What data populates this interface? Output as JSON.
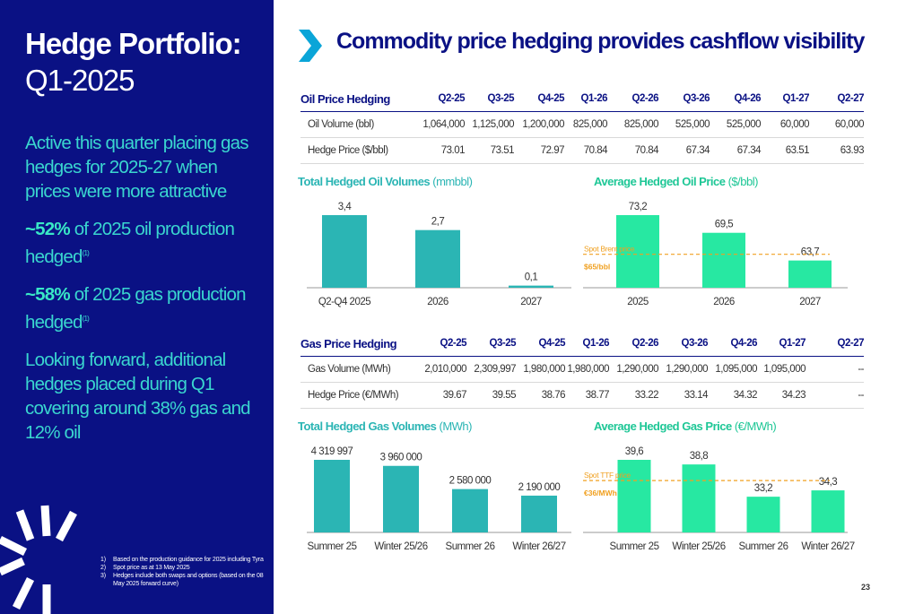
{
  "left": {
    "title_bold": "Hedge Portfolio:",
    "title_sub": "Q1-2025",
    "b1": "Active this quarter placing gas hedges for 2025-27 when prices were more attractive",
    "b2_hi": "~52%",
    "b2_text": " of 2025 oil production hedged",
    "b2_sup": "(1)",
    "b3_hi": "~58%",
    "b3_text": " of 2025 gas production hedged",
    "b3_sup": "(1)",
    "b4": "Looking forward, additional hedges placed during Q1 covering around 38% gas and 12% oil",
    "footnotes": [
      {
        "n": "1)",
        "t": "Based on the production guidance for 2025 including Tyra"
      },
      {
        "n": "2)",
        "t": "Spot price as at 13 May 2025"
      },
      {
        "n": "3)",
        "t": "Hedges include both swaps and options (based on the 08 May 2025 forward curve)"
      }
    ]
  },
  "header": {
    "title": "Commodity price hedging provides cashflow visibility"
  },
  "oil_table": {
    "headers": [
      "Oil Price Hedging",
      "Q2-25",
      "Q3-25",
      "Q4-25",
      "Q1-26",
      "Q2-26",
      "Q3-26",
      "Q4-26",
      "Q1-27",
      "Q2-27"
    ],
    "rows": [
      [
        "Oil Volume (bbl)",
        "1,064,000",
        "1,125,000",
        "1,200,000",
        "825,000",
        "825,000",
        "525,000",
        "525,000",
        "60,000",
        "60,000"
      ],
      [
        "Hedge Price ($/bbl)",
        "73.01",
        "73.51",
        "72.97",
        "70.84",
        "70.84",
        "67.34",
        "67.34",
        "63.51",
        "63.93"
      ]
    ]
  },
  "gas_table": {
    "headers": [
      "Gas Price Hedging",
      "Q2-25",
      "Q3-25",
      "Q4-25",
      "Q1-26",
      "Q2-26",
      "Q3-26",
      "Q4-26",
      "Q1-27",
      "Q2-27"
    ],
    "rows": [
      [
        "Gas Volume (MWh)",
        "2,010,000",
        "2,309,997",
        "1,980,000",
        "1,980,000",
        "1,290,000",
        "1,290,000",
        "1,095,000",
        "1,095,000",
        "--"
      ],
      [
        "Hedge Price (€/MWh)",
        "39.67",
        "39.55",
        "38.76",
        "38.77",
        "33.22",
        "33.14",
        "34.32",
        "34.23",
        "--"
      ]
    ]
  },
  "charts": {
    "oil_vol": {
      "title": "Total Hedged Oil Volumes",
      "unit": " (mmbbl)"
    },
    "oil_price": {
      "title": "Average Hedged Oil Price",
      "unit": " ($/bbl)"
    },
    "gas_vol": {
      "title": "Total Hedged Gas Volumes",
      "unit": " (MWh)"
    },
    "gas_price": {
      "title": "Average Hedged Gas Price",
      "unit": " (€/MWh)"
    }
  },
  "chart_data": [
    {
      "type": "bar",
      "title": "Total Hedged Oil Volumes (mmbbl)",
      "categories": [
        "Q2-Q4 2025",
        "2026",
        "2027"
      ],
      "values": [
        3.4,
        2.7,
        0.1
      ],
      "labels": [
        "3,4",
        "2,7",
        "0,1"
      ],
      "color": "#2bb5b4",
      "ylim": [
        0,
        3.4
      ]
    },
    {
      "type": "bar",
      "title": "Average Hedged Oil Price ($/bbl)",
      "categories": [
        "2025",
        "2026",
        "2027"
      ],
      "values": [
        73.2,
        69.5,
        63.7
      ],
      "labels": [
        "73,2",
        "69,5",
        "63,7"
      ],
      "color": "#27e8a2",
      "ylim": [
        58,
        73.2
      ],
      "reference": {
        "label": "Spot Brent price",
        "value_label": "$65/bbl",
        "value": 65
      }
    },
    {
      "type": "bar",
      "title": "Total Hedged Gas Volumes (MWh)",
      "categories": [
        "Summer 25",
        "Winter 25/26",
        "Summer 26",
        "Winter 26/27"
      ],
      "values": [
        4319997,
        3960000,
        2580000,
        2190000
      ],
      "labels": [
        "4 319 997",
        "3 960 000",
        "2 580 000",
        "2 190 000"
      ],
      "color": "#2bb5b4",
      "ylim": [
        0,
        4319997
      ]
    },
    {
      "type": "bar",
      "title": "Average Hedged Gas Price (€/MWh)",
      "categories": [
        "Summer 25",
        "Winter 25/26",
        "Summer 26",
        "Winter 26/27"
      ],
      "values": [
        39.6,
        38.8,
        33.2,
        34.3
      ],
      "labels": [
        "39,6",
        "38,8",
        "33,2",
        "34,3"
      ],
      "color": "#27e8a2",
      "ylim": [
        27,
        39.6
      ],
      "reference": {
        "label": "Spot TTF price",
        "value_label": "€36/MWh",
        "value": 36
      }
    }
  ],
  "page_number": "23",
  "colors": {
    "navy": "#0a1184",
    "teal": "#2bb5b4",
    "green": "#27e8a2",
    "ref_line": "#f0a020"
  }
}
